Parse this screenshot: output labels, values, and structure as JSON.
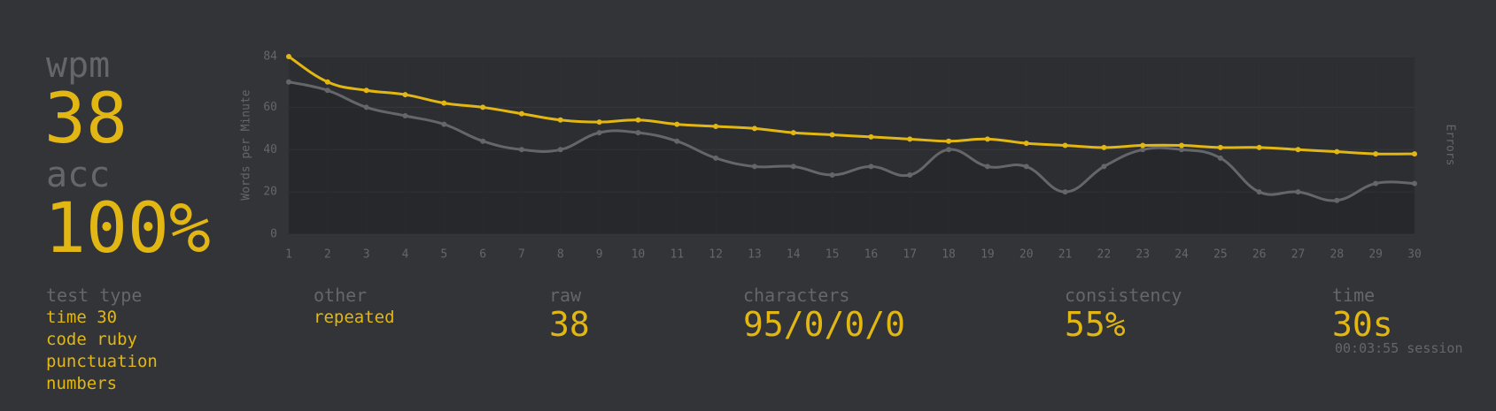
{
  "summary": {
    "wpm_label": "wpm",
    "wpm": "38",
    "acc_label": "acc",
    "acc": "100%"
  },
  "chart_data": {
    "type": "line",
    "y_label": "Words per Minute",
    "y2_label": "Errors",
    "x": [
      1,
      2,
      3,
      4,
      5,
      6,
      7,
      8,
      9,
      10,
      11,
      12,
      13,
      14,
      15,
      16,
      17,
      18,
      19,
      20,
      21,
      22,
      23,
      24,
      25,
      26,
      27,
      28,
      29,
      30
    ],
    "xlim": [
      1,
      30
    ],
    "xticks": [
      1,
      2,
      3,
      4,
      5,
      6,
      7,
      8,
      9,
      10,
      11,
      12,
      13,
      14,
      15,
      16,
      17,
      18,
      19,
      20,
      21,
      22,
      23,
      24,
      25,
      26,
      27,
      28,
      29,
      30
    ],
    "ylim": [
      0,
      84
    ],
    "yticks": [
      0,
      20,
      40,
      60,
      84
    ],
    "grid": true,
    "series": [
      {
        "color": "#646669",
        "fill": true,
        "values": [
          72,
          68,
          60,
          56,
          52,
          44,
          40,
          40,
          48,
          48,
          44,
          36,
          32,
          32,
          28,
          32,
          28,
          40,
          32,
          32,
          20,
          32,
          40,
          40,
          36,
          20,
          20,
          16,
          24,
          24
        ]
      },
      {
        "color": "#e2b714",
        "fill": false,
        "values": [
          84,
          72,
          68,
          66,
          62,
          60,
          57,
          54,
          53,
          54,
          52,
          51,
          50,
          48,
          47,
          46,
          45,
          44,
          45,
          43,
          42,
          41,
          42,
          42,
          41,
          41,
          40,
          39,
          38,
          38
        ]
      }
    ]
  },
  "details": [
    {
      "label": "test type",
      "lines": [
        "time 30",
        "code ruby",
        "punctuation",
        "numbers"
      ]
    },
    {
      "label": "other",
      "lines": [
        "repeated"
      ]
    },
    {
      "label": "raw",
      "value": "38"
    },
    {
      "label": "characters",
      "value": "95/0/0/0"
    },
    {
      "label": "consistency",
      "value": "55%"
    },
    {
      "label": "time",
      "value": "30s",
      "note": "00:03:55 session"
    }
  ]
}
